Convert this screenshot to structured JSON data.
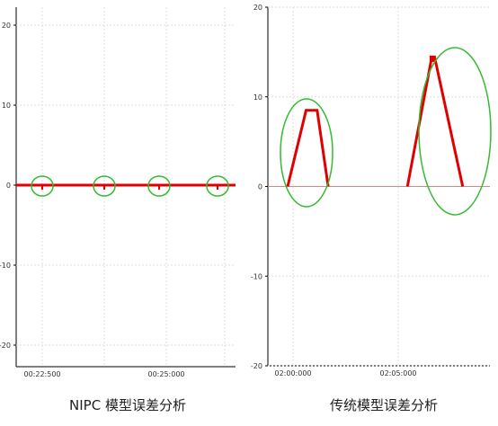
{
  "chart_data": [
    {
      "type": "line",
      "title": "NIPC 模型误差分析",
      "xlabel": "",
      "ylabel": "",
      "ylim": [
        -23,
        22
      ],
      "yticks": [
        20,
        10,
        0,
        -10,
        -20
      ],
      "x_ticks": [
        "00:22:500",
        "00:25:000"
      ],
      "grid": true,
      "series": [
        {
          "values": [
            0,
            0,
            0,
            0,
            0,
            0,
            0,
            0,
            0,
            0,
            0,
            0
          ],
          "color": "#e00000"
        }
      ],
      "annotations": [
        {
          "type": "ellipse",
          "label": "",
          "color": "#33bb33"
        },
        {
          "type": "ellipse",
          "label": "",
          "color": "#33bb33"
        },
        {
          "type": "ellipse",
          "label": "",
          "color": "#33bb33"
        },
        {
          "type": "ellipse",
          "label": "",
          "color": "#33bb33"
        }
      ]
    },
    {
      "type": "line",
      "title": "传统模型误差分析",
      "xlabel": "",
      "ylabel": "",
      "ylim": [
        -20,
        20
      ],
      "yticks": [
        20,
        10,
        0,
        -10,
        -20
      ],
      "x_ticks": [
        "02:00:000",
        "02:05:000"
      ],
      "grid": true,
      "baseline_color": "#e88080",
      "series": [
        {
          "color": "#e00000",
          "peaks": [
            {
              "start": 0,
              "top_start": 1,
              "top_end": 1.6,
              "end": 2.2,
              "value": 8.5
            },
            {
              "start": 6.5,
              "top_start": 7.8,
              "top_end": 8.0,
              "end": 9.5,
              "value": 14.2
            }
          ]
        }
      ],
      "annotations": [
        {
          "type": "ellipse",
          "label": "",
          "color": "#33bb33"
        },
        {
          "type": "ellipse",
          "label": "",
          "color": "#33bb33"
        }
      ]
    }
  ]
}
